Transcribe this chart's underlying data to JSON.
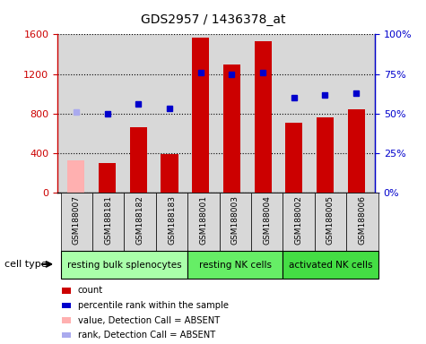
{
  "title": "GDS2957 / 1436378_at",
  "samples": [
    "GSM188007",
    "GSM188181",
    "GSM188182",
    "GSM188183",
    "GSM188001",
    "GSM188003",
    "GSM188004",
    "GSM188002",
    "GSM188005",
    "GSM188006"
  ],
  "counts": [
    330,
    295,
    665,
    390,
    1570,
    1295,
    1535,
    705,
    765,
    845
  ],
  "count_absent": [
    true,
    false,
    false,
    false,
    false,
    false,
    false,
    false,
    false,
    false
  ],
  "percentile_ranks": [
    51,
    50,
    56,
    53,
    76,
    75,
    76,
    60,
    62,
    63
  ],
  "rank_absent": [
    true,
    false,
    false,
    false,
    false,
    false,
    false,
    false,
    false,
    false
  ],
  "ylim_left": [
    0,
    1600
  ],
  "ylim_right": [
    0,
    100
  ],
  "yticks_left": [
    0,
    400,
    800,
    1200,
    1600
  ],
  "yticks_right": [
    0,
    25,
    50,
    75,
    100
  ],
  "yticklabels_right": [
    "0%",
    "25%",
    "50%",
    "75%",
    "100%"
  ],
  "cell_groups": [
    {
      "label": "resting bulk splenocytes",
      "start": 0,
      "end": 3,
      "color": "#aaffaa"
    },
    {
      "label": "resting NK cells",
      "start": 4,
      "end": 6,
      "color": "#66ee66"
    },
    {
      "label": "activated NK cells",
      "start": 7,
      "end": 9,
      "color": "#44dd44"
    }
  ],
  "bar_color_normal": "#cc0000",
  "bar_color_absent": "#ffb0b0",
  "dot_color_normal": "#0000cc",
  "dot_color_absent": "#aaaaee",
  "bar_width": 0.55,
  "bg_color": "#d8d8d8",
  "legend_items": [
    {
      "color": "#cc0000",
      "label": "count"
    },
    {
      "color": "#0000cc",
      "label": "percentile rank within the sample"
    },
    {
      "color": "#ffb0b0",
      "label": "value, Detection Call = ABSENT"
    },
    {
      "color": "#aaaaee",
      "label": "rank, Detection Call = ABSENT"
    }
  ]
}
